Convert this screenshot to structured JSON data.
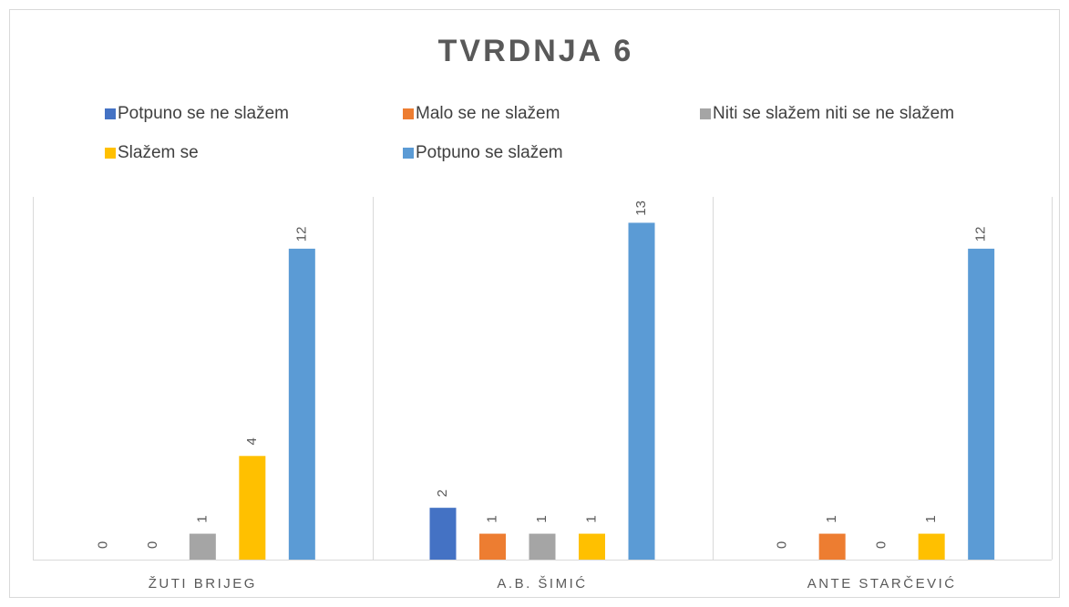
{
  "chart_data": {
    "type": "bar",
    "title": "TVRDNJA 6",
    "categories": [
      "ŽUTI BRIJEG",
      "A.B. ŠIMIĆ",
      "ANTE STARČEVIĆ"
    ],
    "series": [
      {
        "name": "Potpuno se ne slažem",
        "color": "#4472c4",
        "values": [
          0,
          2,
          0
        ]
      },
      {
        "name": "Malo se ne slažem",
        "color": "#ed7d31",
        "values": [
          0,
          1,
          1
        ]
      },
      {
        "name": "Niti se slažem niti se ne slažem",
        "color": "#a5a5a5",
        "values": [
          1,
          1,
          0
        ]
      },
      {
        "name": "Slažem se",
        "color": "#ffc000",
        "values": [
          4,
          1,
          1
        ]
      },
      {
        "name": "Potpuno se slažem",
        "color": "#5b9bd5",
        "values": [
          12,
          13,
          12
        ]
      }
    ],
    "ylim": [
      0,
      14
    ]
  }
}
